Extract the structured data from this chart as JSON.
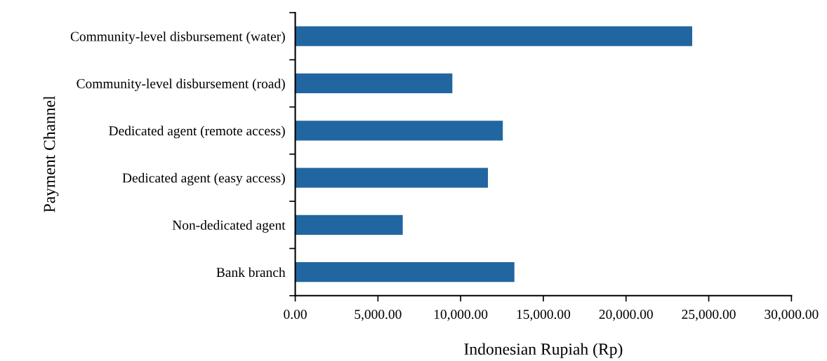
{
  "chart_data": {
    "type": "bar",
    "orientation": "horizontal",
    "categories": [
      "Community-level disbursement (water)",
      "Community-level disbursement (road)",
      "Dedicated agent (remote access)",
      "Dedicated agent (easy access)",
      "Non-dedicated agent",
      "Bank branch"
    ],
    "values": [
      24000,
      9500,
      12550,
      11650,
      6500,
      13250
    ],
    "color": "#2166a0",
    "xlabel": "Indonesian Rupiah (Rp)",
    "ylabel": "Payment Channel",
    "xlim": [
      0,
      30000
    ],
    "xticks": [
      {
        "value": 0,
        "label": "0.00"
      },
      {
        "value": 5000,
        "label": "5,000.00"
      },
      {
        "value": 10000,
        "label": "10,000.00"
      },
      {
        "value": 15000,
        "label": "15,000.00"
      },
      {
        "value": 20000,
        "label": "20,000.00"
      },
      {
        "value": 25000,
        "label": "25,000.00"
      },
      {
        "value": 30000,
        "label": "30,000.00"
      }
    ],
    "grid": false,
    "legend": false
  }
}
